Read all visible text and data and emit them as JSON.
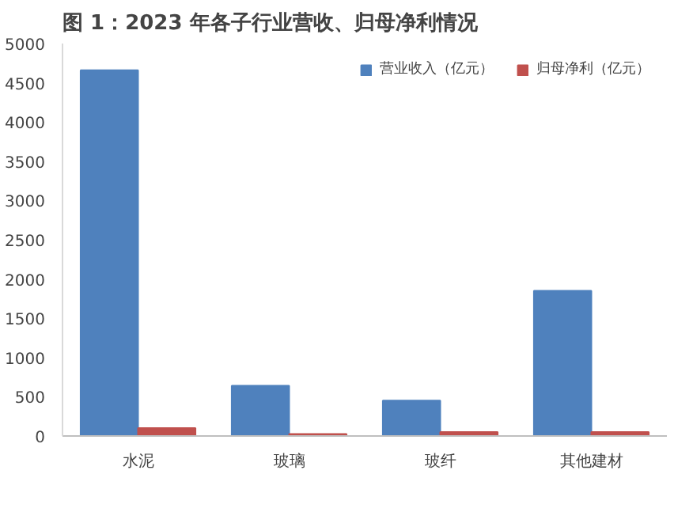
{
  "chart_data": {
    "type": "bar",
    "title": "图 1：2023 年各子行业营收、归母净利情况",
    "categories": [
      "水泥",
      "玻璃",
      "玻纤",
      "其他建材"
    ],
    "series": [
      {
        "name": "营业收入（亿元）",
        "color": "#4f81bd",
        "values": [
          4660,
          640,
          450,
          1850
        ]
      },
      {
        "name": "归母净利（亿元）",
        "color": "#c0504d",
        "values": [
          100,
          25,
          50,
          50
        ]
      }
    ],
    "ylim": [
      0,
      5000
    ],
    "yticks": [
      0,
      500,
      1000,
      1500,
      2000,
      2500,
      3000,
      3500,
      4000,
      4500,
      5000
    ],
    "grid": false,
    "legend": "top right"
  }
}
